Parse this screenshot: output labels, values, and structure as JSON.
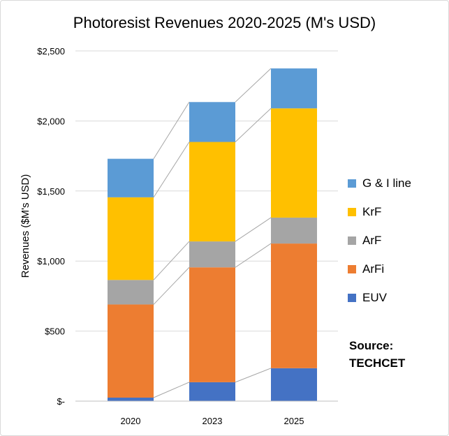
{
  "chart_data": {
    "type": "bar",
    "stacked": true,
    "title": "Photoresist Revenues 2020-2025 (M's USD)",
    "xlabel": "",
    "ylabel": "Revenues ($M's USD)",
    "categories": [
      "2020",
      "2023",
      "2025"
    ],
    "series": [
      {
        "name": "EUV",
        "color": "#4472c4",
        "values": [
          25,
          135,
          235
        ]
      },
      {
        "name": "ArFi",
        "color": "#ed7d31",
        "values": [
          665,
          820,
          890
        ]
      },
      {
        "name": "ArF",
        "color": "#a5a5a5",
        "values": [
          175,
          185,
          185
        ]
      },
      {
        "name": "KrF",
        "color": "#ffc000",
        "values": [
          590,
          710,
          780
        ]
      },
      {
        "name": "G & I line",
        "color": "#5b9bd5",
        "values": [
          275,
          285,
          285
        ]
      }
    ],
    "ylim": [
      0,
      2500
    ],
    "yticks": [
      0,
      500,
      1000,
      1500,
      2000,
      2500
    ],
    "ytick_labels": [
      "$-",
      "$500",
      "$1,000",
      "$1,500",
      "$2,000",
      "$2,500"
    ],
    "grid": true,
    "series_lines": true,
    "legend_position": "right",
    "legend_order": [
      "G & I line",
      "KrF",
      "ArF",
      "ArFi",
      "EUV"
    ],
    "annotations": [
      "Source:",
      "TECHCET"
    ]
  }
}
